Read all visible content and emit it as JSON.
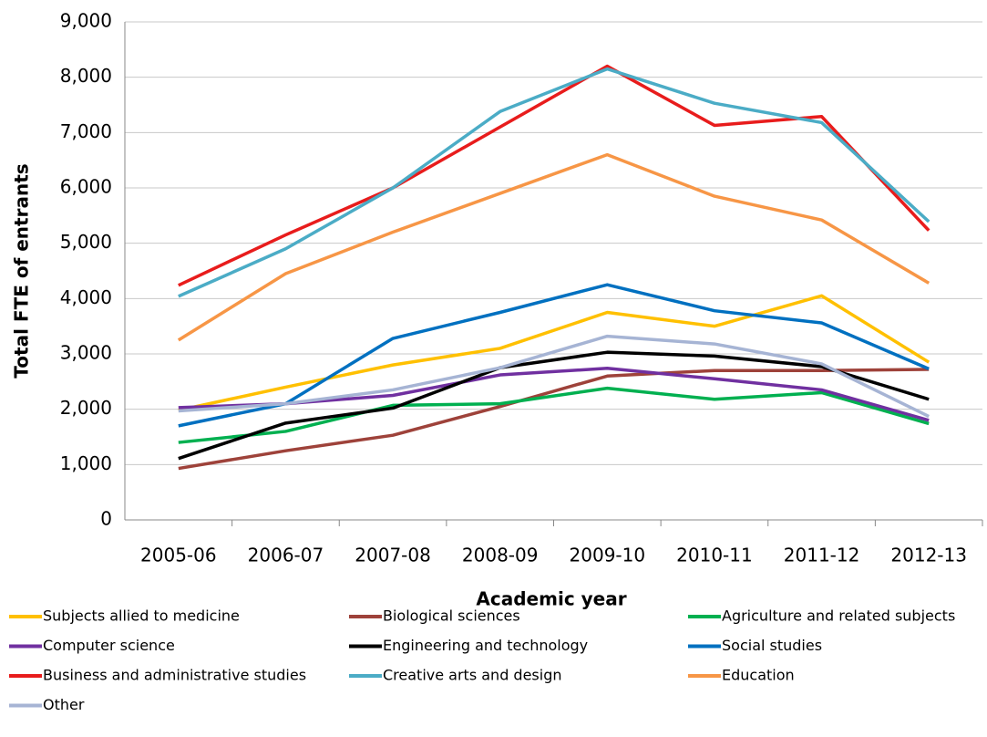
{
  "chart_data": {
    "type": "line",
    "x_label": "Academic year",
    "y_label": "Total FTE of entrants",
    "categories": [
      "2005-06",
      "2006-07",
      "2007-08",
      "2008-09",
      "2009-10",
      "2010-11",
      "2011-12",
      "2012-13"
    ],
    "ylim": [
      0,
      9000
    ],
    "yticks": [
      0,
      {
        "value": 1000,
        "label": "1,000"
      },
      {
        "value": 2000,
        "label": "2,000"
      },
      {
        "value": 3000,
        "label": "3,000"
      },
      {
        "value": 4000,
        "label": "4,000"
      },
      {
        "value": 5000,
        "label": "5,000"
      },
      {
        "value": 6000,
        "label": "6,000"
      },
      {
        "value": 7000,
        "label": "7,000"
      },
      {
        "value": 8000,
        "label": "8,000"
      },
      {
        "value": 9000,
        "label": "9,000"
      }
    ],
    "grid": true,
    "legend": "bottom",
    "series": [
      {
        "name": "Subjects allied to medicine",
        "color": "#ffc000",
        "values": [
          1980,
          2400,
          2800,
          3100,
          3750,
          3500,
          4050,
          2850
        ]
      },
      {
        "name": "Biological sciences",
        "color": "#9e423a",
        "values": [
          930,
          1250,
          1530,
          2050,
          2600,
          2700,
          2700,
          2720
        ]
      },
      {
        "name": "Agriculture and related subjects",
        "color": "#00b050",
        "values": [
          1400,
          1600,
          2070,
          2100,
          2380,
          2180,
          2300,
          1740
        ]
      },
      {
        "name": "Computer science",
        "color": "#7030a0",
        "values": [
          2030,
          2100,
          2250,
          2620,
          2740,
          2550,
          2350,
          1800
        ]
      },
      {
        "name": "Engineering and technology",
        "color": "#000000",
        "values": [
          1110,
          1750,
          2020,
          2750,
          3030,
          2960,
          2770,
          2180
        ]
      },
      {
        "name": "Social studies",
        "color": "#0070c0",
        "values": [
          1700,
          2100,
          3280,
          3750,
          4250,
          3780,
          3560,
          2730
        ]
      },
      {
        "name": "Business and administrative studies",
        "color": "#e81c1c",
        "values": [
          4240,
          5150,
          6000,
          7100,
          8200,
          7130,
          7290,
          5230
        ]
      },
      {
        "name": "Creative arts and design",
        "color": "#4bacc6",
        "values": [
          4040,
          4900,
          6000,
          7380,
          8150,
          7530,
          7180,
          5390
        ]
      },
      {
        "name": "Education",
        "color": "#f79646",
        "values": [
          3250,
          4450,
          5200,
          5900,
          6600,
          5850,
          5420,
          4280
        ]
      },
      {
        "name": "Other",
        "color": "#a6b4d4",
        "values": [
          1970,
          2100,
          2350,
          2750,
          3320,
          3180,
          2820,
          1870
        ]
      }
    ]
  }
}
